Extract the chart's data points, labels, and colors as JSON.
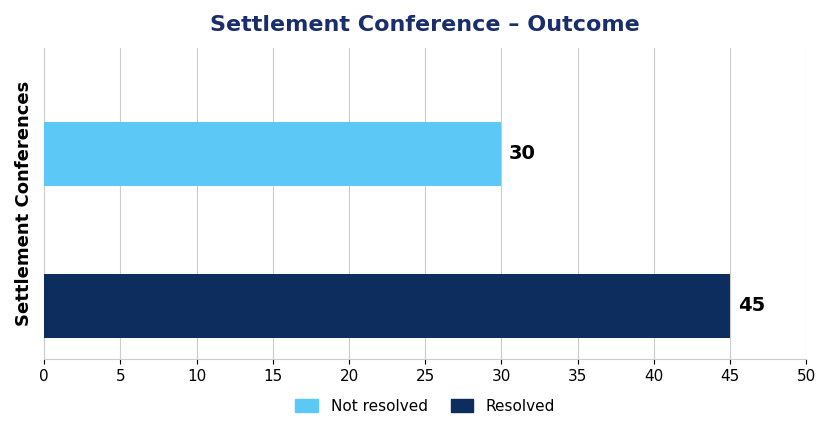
{
  "title": "Settlement Conference – Outcome",
  "title_color": "#1a2e6c",
  "title_fontsize": 16,
  "ylabel": "Settlement Conferences",
  "ylabel_color": "#000000",
  "ylabel_fontsize": 13,
  "series": [
    {
      "label": "Not resolved",
      "value": 30,
      "color": "#5bc8f5",
      "y": 1
    },
    {
      "label": "Resolved",
      "value": 45,
      "color": "#0d2d5e",
      "y": 0
    }
  ],
  "xlim": [
    0,
    50
  ],
  "xticks": [
    0,
    5,
    10,
    15,
    20,
    25,
    30,
    35,
    40,
    45,
    50
  ],
  "bar_height": 0.42,
  "grid_color": "#cccccc",
  "background_color": "#ffffff",
  "annotation_fontsize": 14,
  "annotation_color": "#000000",
  "legend_fontsize": 11,
  "tick_fontsize": 11,
  "tick_color": "#000000"
}
